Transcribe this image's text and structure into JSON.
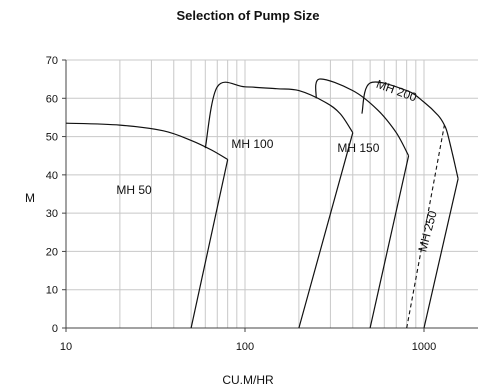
{
  "chart_data": {
    "type": "line",
    "title": "Selection of Pump Size",
    "xlabel": "CU.M/HR",
    "ylabel": "M",
    "xscale": "log",
    "xlim": [
      10,
      1800
    ],
    "ylim": [
      0,
      70
    ],
    "x_ticks": [
      10,
      100,
      1000
    ],
    "x_tick_labels": [
      "10",
      "100",
      "1000"
    ],
    "y_ticks": [
      0,
      10,
      20,
      30,
      40,
      50,
      60,
      70
    ],
    "y_tick_labels": [
      "0",
      "10",
      "20",
      "30",
      "40",
      "50",
      "60",
      "70"
    ],
    "grid": true,
    "series": [
      {
        "name": "MH 50",
        "head_curve": [
          [
            10,
            53.5
          ],
          [
            20,
            53
          ],
          [
            35,
            51.5
          ],
          [
            50,
            49
          ],
          [
            65,
            46.5
          ],
          [
            80,
            44
          ]
        ],
        "boundary": [
          [
            50,
            0
          ],
          [
            80,
            44
          ]
        ]
      },
      {
        "name": "MH 100",
        "head_curve": [
          [
            60,
            47
          ],
          [
            70,
            63
          ],
          [
            100,
            63
          ],
          [
            150,
            62.5
          ],
          [
            200,
            62
          ],
          [
            280,
            59
          ],
          [
            340,
            56
          ],
          [
            400,
            51
          ]
        ],
        "boundary": [
          [
            200,
            0
          ],
          [
            400,
            51
          ]
        ]
      },
      {
        "name": "MH 150",
        "head_curve": [
          [
            250,
            60
          ],
          [
            260,
            65
          ],
          [
            400,
            62
          ],
          [
            550,
            57
          ],
          [
            700,
            51
          ],
          [
            820,
            45
          ]
        ],
        "boundary": [
          [
            500,
            0
          ],
          [
            820,
            45
          ]
        ]
      },
      {
        "name": "MH 200 / MH 250",
        "head_curve": [
          [
            450,
            56
          ],
          [
            500,
            64
          ],
          [
            800,
            62
          ],
          [
            1000,
            59
          ],
          [
            1200,
            55.5
          ],
          [
            1300,
            53
          ],
          [
            1350,
            51
          ],
          [
            1450,
            45
          ],
          [
            1550,
            39
          ]
        ],
        "boundary": [
          [
            1000,
            0
          ],
          [
            1550,
            39
          ]
        ],
        "dashed_line": [
          [
            800,
            0
          ],
          [
            1300,
            53
          ]
        ]
      }
    ],
    "series_labels": [
      {
        "text": "MH 50",
        "x": 24,
        "y": 35
      },
      {
        "text": "MH 100",
        "x": 110,
        "y": 47
      },
      {
        "text": "MH 150",
        "x": 430,
        "y": 46
      },
      {
        "text": "MH 200",
        "x": 690,
        "y": 61,
        "rotation": 20
      },
      {
        "text": "MH 250",
        "x": 1100,
        "y": 25,
        "rotation": -75
      }
    ]
  }
}
